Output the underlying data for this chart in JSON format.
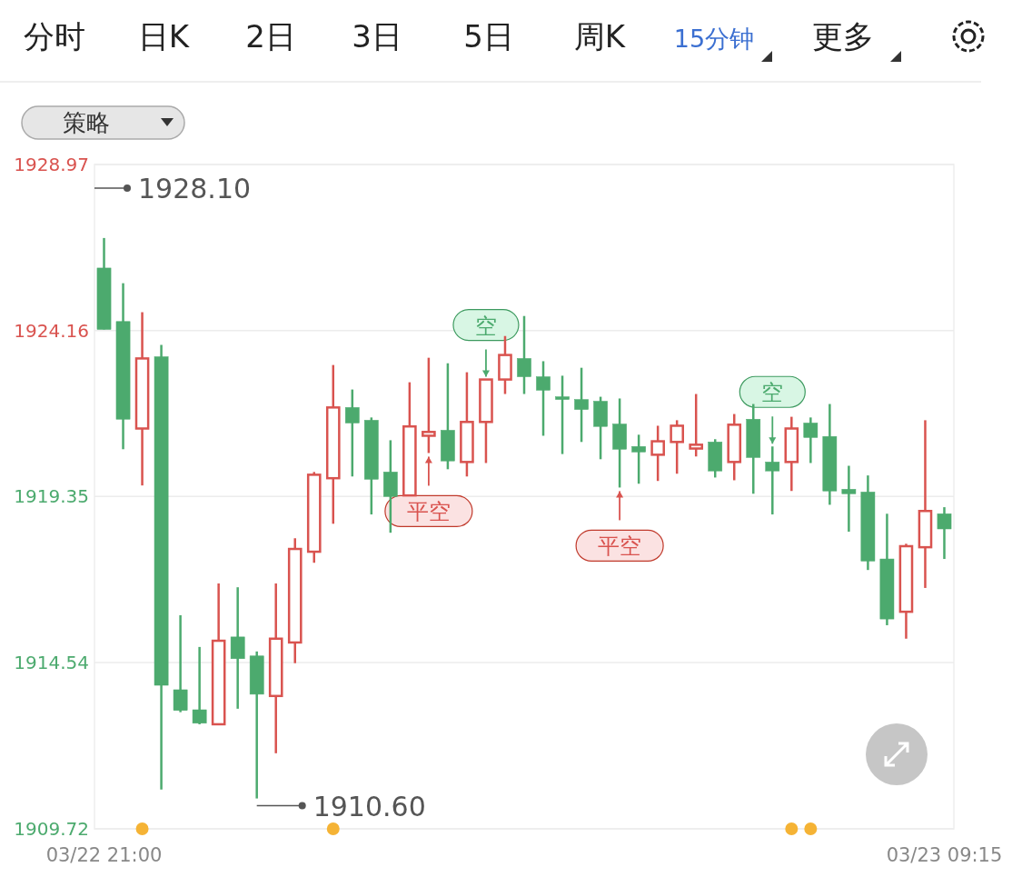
{
  "chart_data": {
    "type": "candlestick",
    "categories": [
      "03/22 21:00",
      null,
      null,
      null,
      null,
      null,
      null,
      null,
      null,
      null,
      null,
      null,
      null,
      null,
      null,
      null,
      null,
      null,
      null,
      null,
      null,
      null,
      null,
      null,
      null,
      null,
      null,
      null,
      null,
      null,
      null,
      null,
      null,
      null,
      null,
      null,
      null,
      null,
      null,
      null,
      null,
      null,
      null,
      null,
      "03/23 09:15"
    ],
    "ohlc": [
      [
        1925.97,
        1926.84,
        1924.19,
        1924.19
      ],
      [
        1924.42,
        1925.53,
        1920.72,
        1921.59
      ],
      [
        1921.32,
        1924.69,
        1919.67,
        1923.35
      ],
      [
        1923.4,
        1923.74,
        1910.86,
        1913.88
      ],
      [
        1913.75,
        1915.91,
        1913.1,
        1913.15
      ],
      [
        1913.17,
        1914.99,
        1912.75,
        1912.78
      ],
      [
        1912.75,
        1916.83,
        1912.75,
        1915.17
      ],
      [
        1915.28,
        1916.72,
        1913.2,
        1914.65
      ],
      [
        1914.73,
        1914.86,
        1910.6,
        1913.62
      ],
      [
        1913.57,
        1916.83,
        1911.91,
        1915.23
      ],
      [
        1915.12,
        1918.14,
        1914.52,
        1917.83
      ],
      [
        1917.75,
        1920.06,
        1917.43,
        1919.98
      ],
      [
        1919.88,
        1923.16,
        1918.56,
        1921.93
      ],
      [
        1921.93,
        1922.45,
        1919.93,
        1921.48
      ],
      [
        1921.56,
        1921.64,
        1918.83,
        1919.85
      ],
      [
        1920.06,
        1920.98,
        1918.3,
        1919.35
      ],
      [
        1919.38,
        1922.66,
        1919.38,
        1921.38
      ],
      [
        1921.11,
        1923.37,
        1920.61,
        1921.22
      ],
      [
        1921.27,
        1923.21,
        1920.14,
        1920.38
      ],
      [
        1920.35,
        1922.95,
        1919.93,
        1921.51
      ],
      [
        1921.51,
        1922.74,
        1920.32,
        1922.74
      ],
      [
        1922.74,
        1924.0,
        1922.32,
        1923.45
      ],
      [
        1923.35,
        1924.58,
        1922.32,
        1922.82
      ],
      [
        1922.82,
        1923.27,
        1921.11,
        1922.43
      ],
      [
        1922.24,
        1922.85,
        1920.58,
        1922.16
      ],
      [
        1922.16,
        1923.08,
        1920.93,
        1921.87
      ],
      [
        1922.11,
        1922.24,
        1920.43,
        1921.38
      ],
      [
        1921.45,
        1922.19,
        1919.61,
        1920.72
      ],
      [
        1920.8,
        1921.14,
        1919.72,
        1920.64
      ],
      [
        1920.56,
        1921.4,
        1919.8,
        1920.95
      ],
      [
        1920.93,
        1921.56,
        1920.01,
        1921.4
      ],
      [
        1920.74,
        1922.32,
        1920.51,
        1920.85
      ],
      [
        1920.93,
        1921.01,
        1919.9,
        1920.09
      ],
      [
        1920.35,
        1921.74,
        1919.82,
        1921.43
      ],
      [
        1921.59,
        1922.03,
        1919.43,
        1920.48
      ],
      [
        1920.35,
        1920.8,
        1918.83,
        1920.09
      ],
      [
        1920.35,
        1921.66,
        1919.51,
        1921.32
      ],
      [
        1921.48,
        1921.64,
        1920.32,
        1921.06
      ],
      [
        1921.09,
        1922.03,
        1919.11,
        1919.51
      ],
      [
        1919.56,
        1920.24,
        1918.33,
        1919.43
      ],
      [
        1919.48,
        1919.96,
        1917.22,
        1917.48
      ],
      [
        1917.54,
        1918.85,
        1915.62,
        1915.8
      ],
      [
        1916.01,
        1917.98,
        1915.23,
        1917.91
      ],
      [
        1917.88,
        1921.56,
        1916.7,
        1918.93
      ],
      [
        1918.85,
        1919.04,
        1917.54,
        1918.41
      ]
    ],
    "colors": [
      "#4caa6e",
      "#4caa6e",
      "#d9534f",
      "#4caa6e",
      "#4caa6e",
      "#4caa6e",
      "#d9534f",
      "#4caa6e",
      "#4caa6e",
      "#d9534f",
      "#d9534f",
      "#d9534f",
      "#d9534f",
      "#4caa6e",
      "#4caa6e",
      "#4caa6e",
      "#d9534f",
      "#d9534f",
      "#4caa6e",
      "#d9534f",
      "#d9534f",
      "#d9534f",
      "#4caa6e",
      "#4caa6e",
      "#4caa6e",
      "#4caa6e",
      "#4caa6e",
      "#4caa6e",
      "#4caa6e",
      "#d9534f",
      "#d9534f",
      "#d9534f",
      "#4caa6e",
      "#d9534f",
      "#4caa6e",
      "#4caa6e",
      "#d9534f",
      "#4caa6e",
      "#4caa6e",
      "#4caa6e",
      "#4caa6e",
      "#4caa6e",
      "#d9534f",
      "#d9534f",
      "#4caa6e"
    ],
    "ylim": [
      1909.72,
      1928.97
    ],
    "yticks": [
      1928.97,
      1924.16,
      1919.35,
      1914.54,
      1909.72
    ],
    "grid": "y",
    "annotations": [
      "分时",
      "日K",
      "2日",
      "3日",
      "5日",
      "周K",
      "15分钟",
      "更多",
      "策略",
      "1928.10",
      "1910.60",
      {
        "text": "空",
        "y": 1922.74
      },
      {
        "text": "平空",
        "y": 1920.61
      },
      {
        "text": "平空",
        "y": 1919.61
      },
      {
        "text": "空",
        "y": 1920.8
      }
    ]
  }
}
